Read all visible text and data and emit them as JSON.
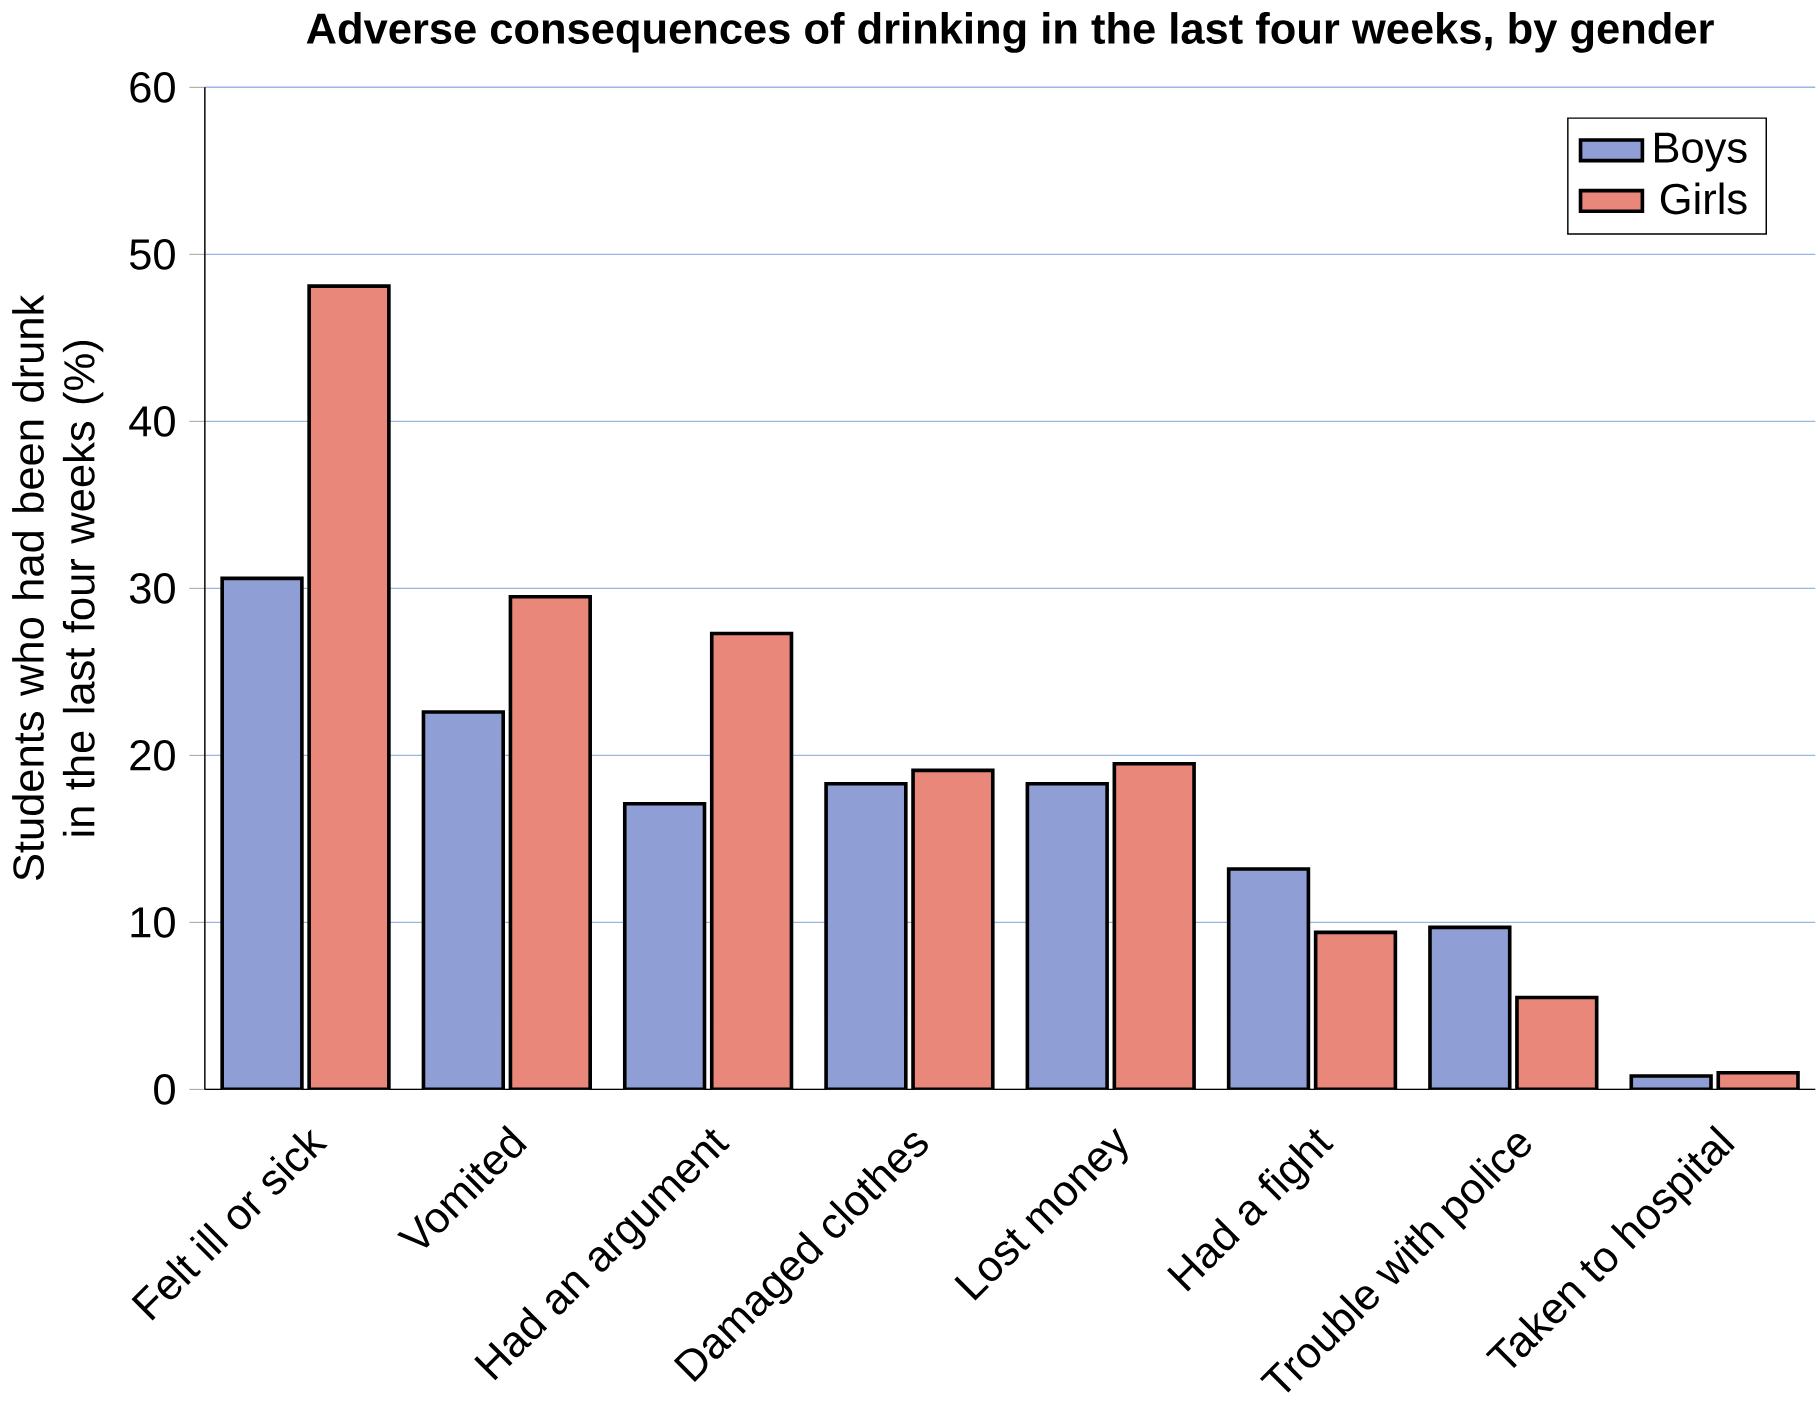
{
  "chart_data": {
    "type": "bar",
    "title": "Adverse consequences of drinking in the last four weeks, by gender",
    "ylabel": "Students who had been drunk in the last four weeks (%)",
    "categories": [
      "Felt ill or sick",
      "Vomited",
      "Had an argument",
      "Damaged clothes",
      "Lost money",
      "Had a fight",
      "Trouble with police",
      "Taken to hospital"
    ],
    "series": [
      {
        "name": "Boys",
        "color": "#8f9fd6",
        "values": [
          30.6,
          22.6,
          17.1,
          18.3,
          18.3,
          13.2,
          9.7,
          0.8
        ]
      },
      {
        "name": "Girls",
        "color": "#e8877a",
        "values": [
          48.1,
          29.5,
          27.3,
          19.1,
          19.5,
          9.4,
          5.5,
          1.0
        ]
      }
    ],
    "ylim": [
      0,
      60
    ],
    "yticks": [
      0,
      10,
      20,
      30,
      40,
      50,
      60
    ],
    "grid": "y",
    "legend": "top right"
  }
}
